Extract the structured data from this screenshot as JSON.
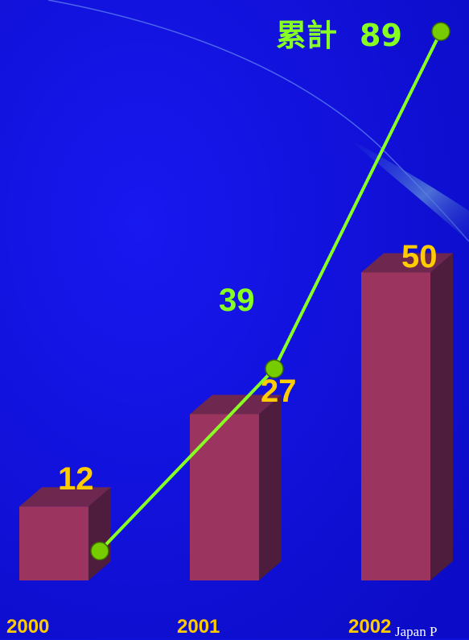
{
  "colors": {
    "background": "#1010dd",
    "bar_front": "#9b3560",
    "bar_side": "#4e1c3c",
    "bar_top": "#6e2850",
    "annual_label": "#ffcc00",
    "cumulative": "#88ff22",
    "cumulative_point": "#77cc00",
    "year_label": "#ffcc00"
  },
  "chart_data": {
    "type": "bar",
    "categories": [
      "2000",
      "2001",
      "2002"
    ],
    "series": [
      {
        "values": [
          12,
          27,
          50
        ]
      },
      {
        "values": [
          12,
          39,
          89
        ]
      }
    ],
    "cumulative_label": "累計",
    "ylim": [
      0,
      89
    ]
  },
  "footer_text": "Japan P"
}
